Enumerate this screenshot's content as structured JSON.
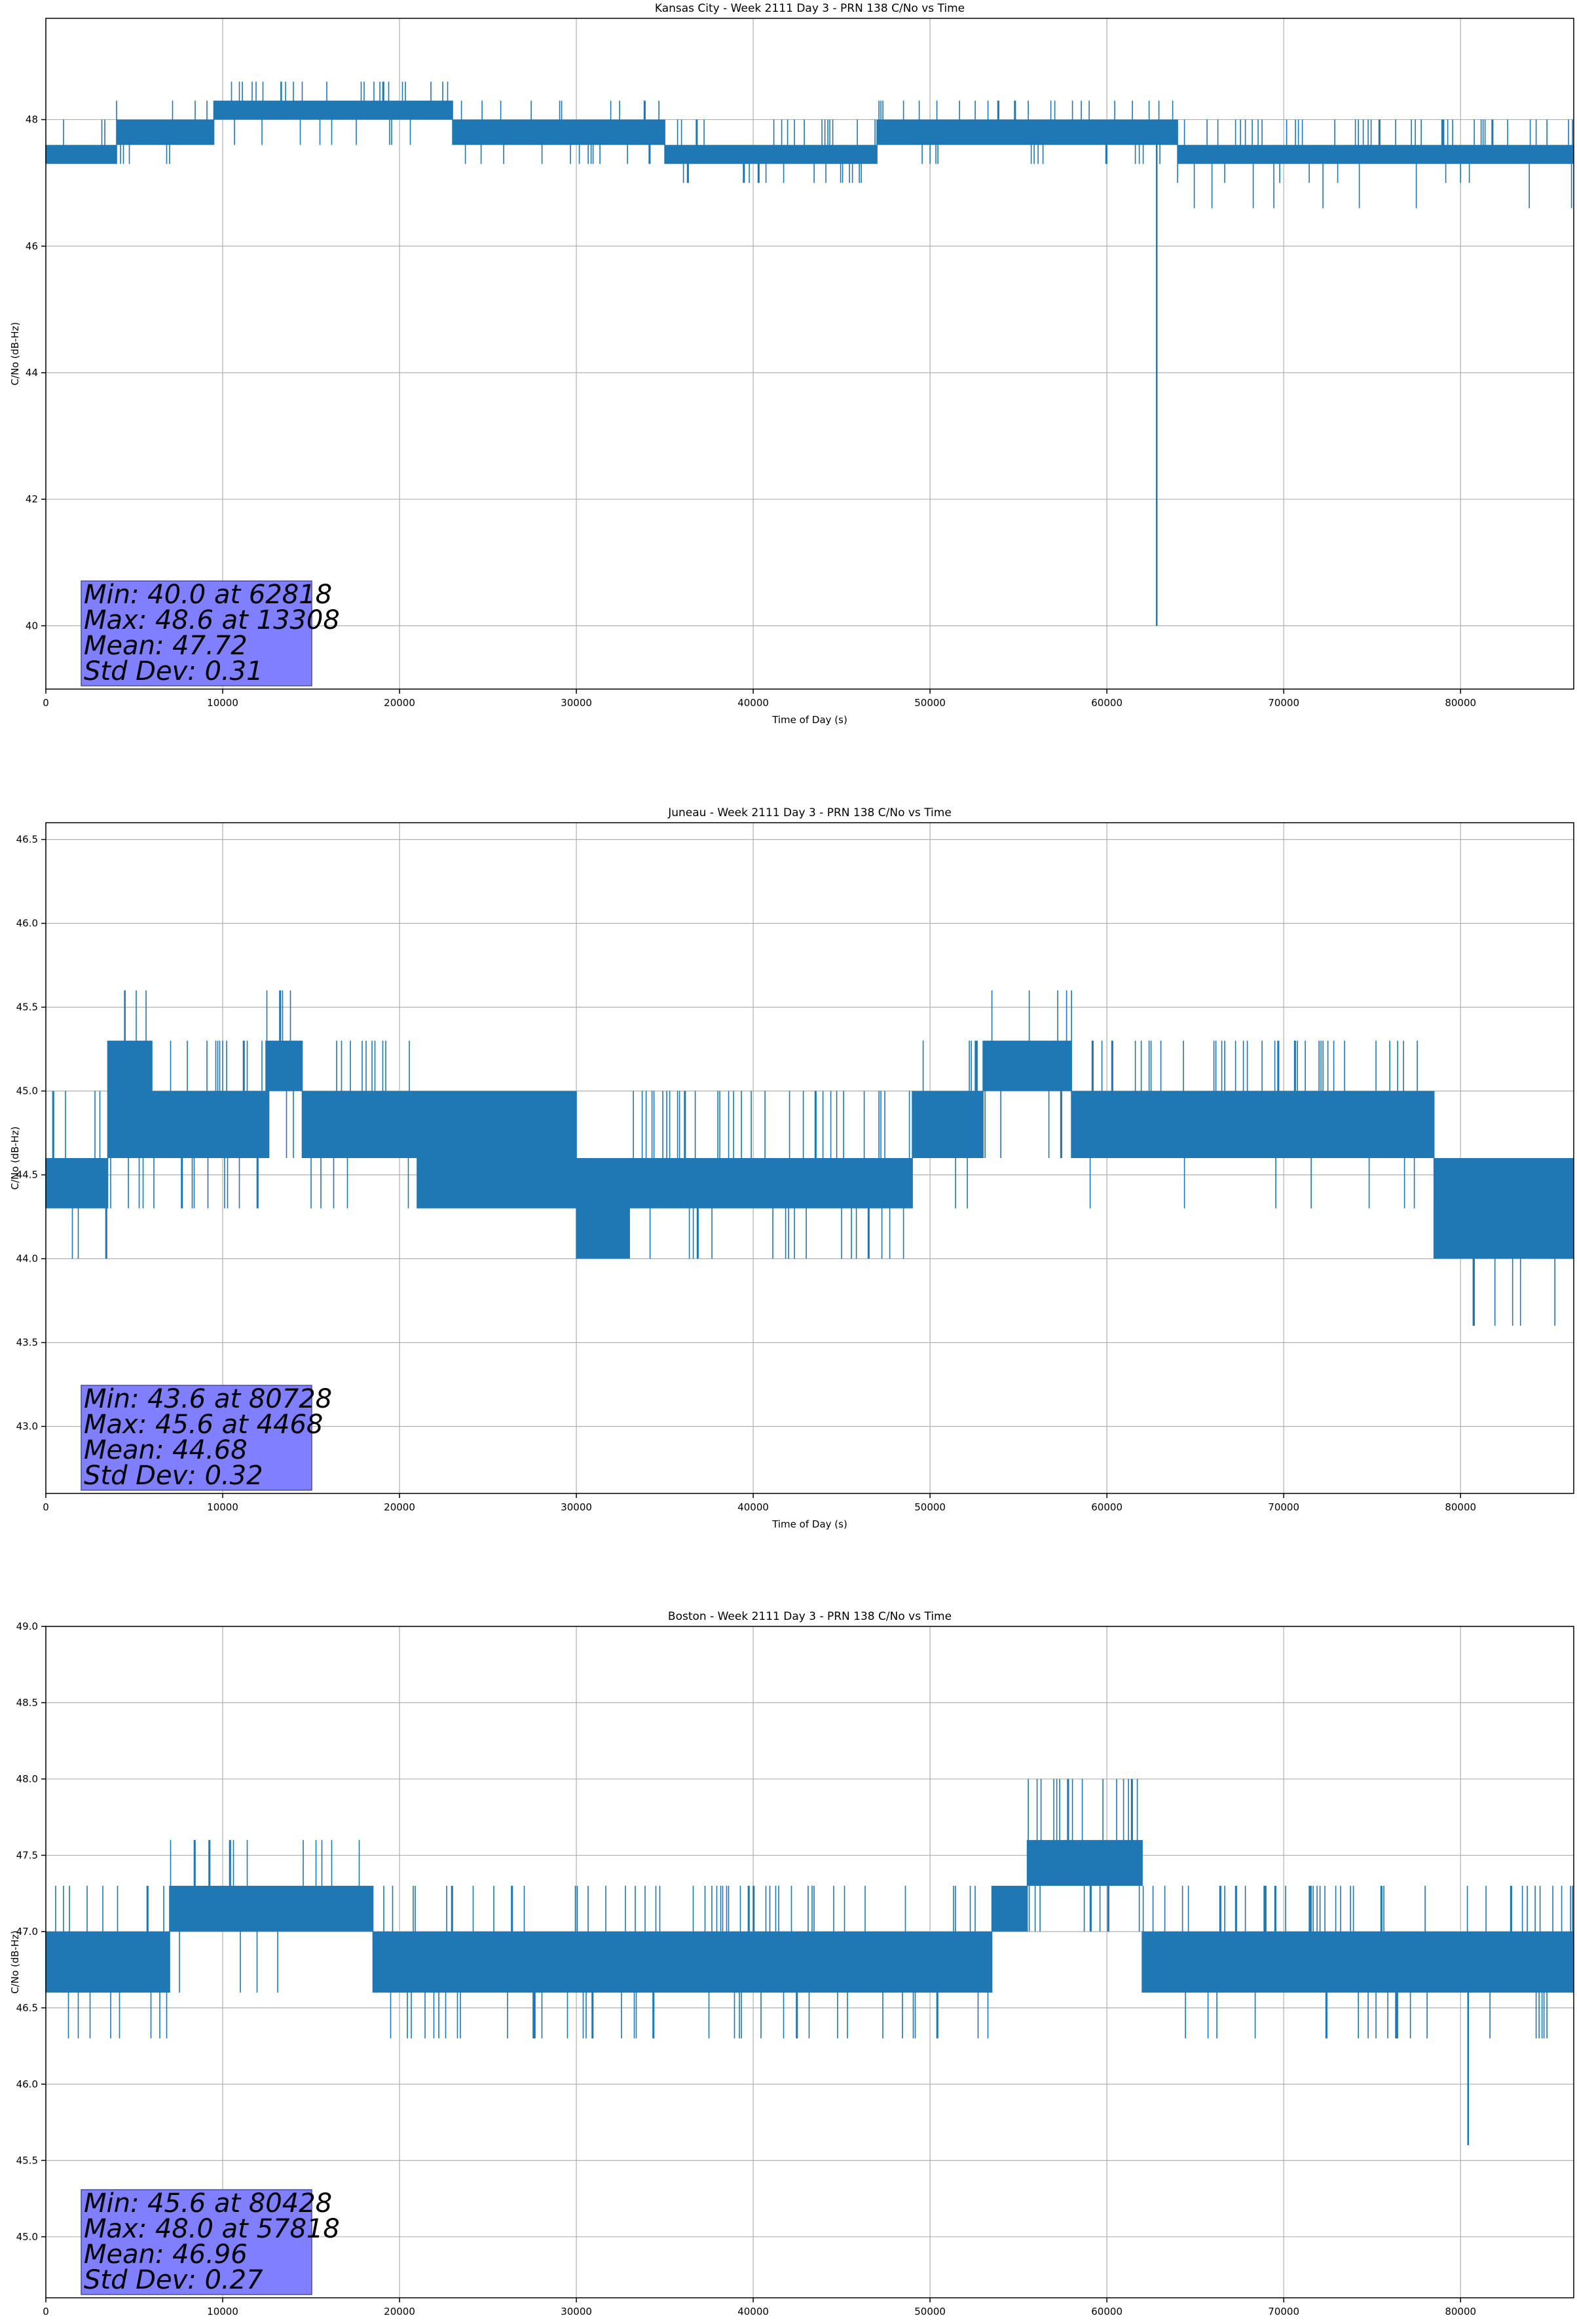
{
  "figure": {
    "colors": {
      "series": "#1f77b4",
      "grid": "#b0b0b0",
      "stats_box": "#7f7fff",
      "axes": "#000000"
    }
  },
  "chart_data": [
    {
      "type": "line",
      "title": "Kansas City - Week 2111 Day 3 - PRN 138 C/No vs Time",
      "xlabel": "Time of Day (s)",
      "ylabel": "C/No (dB-Hz)",
      "xlim": [
        0,
        86400
      ],
      "ylim": [
        39.0,
        49.6
      ],
      "xticks": [
        0,
        10000,
        20000,
        30000,
        40000,
        50000,
        60000,
        70000,
        80000
      ],
      "yticks": [
        40,
        42,
        44,
        46,
        48
      ],
      "ytick_decimals": 0,
      "grid": true,
      "series": [
        {
          "values_description": "quantized C/No samples",
          "segments": [
            {
              "x0": 0,
              "x1": 4000,
              "lo": 47.3,
              "hi": 47.6,
              "spikes_up": [
                48.0
              ],
              "spikes_down": []
            },
            {
              "x0": 4000,
              "x1": 7000,
              "lo": 47.6,
              "hi": 48.0,
              "spikes_up": [
                48.3
              ],
              "spikes_down": [
                47.3
              ]
            },
            {
              "x0": 7000,
              "x1": 9500,
              "lo": 47.6,
              "hi": 48.0,
              "spikes_up": [
                48.3
              ],
              "spikes_down": []
            },
            {
              "x0": 9500,
              "x1": 23000,
              "lo": 48.0,
              "hi": 48.3,
              "spikes_up": [
                48.6
              ],
              "spikes_down": [
                47.6
              ]
            },
            {
              "x0": 23000,
              "x1": 35000,
              "lo": 47.6,
              "hi": 48.0,
              "spikes_up": [
                48.3
              ],
              "spikes_down": [
                47.3
              ]
            },
            {
              "x0": 35000,
              "x1": 47000,
              "lo": 47.3,
              "hi": 47.6,
              "spikes_up": [
                48.0
              ],
              "spikes_down": [
                47.0
              ]
            },
            {
              "x0": 47000,
              "x1": 53000,
              "lo": 47.6,
              "hi": 48.0,
              "spikes_up": [
                48.3
              ],
              "spikes_down": [
                47.3
              ]
            },
            {
              "x0": 53000,
              "x1": 64000,
              "lo": 47.6,
              "hi": 48.0,
              "spikes_up": [
                48.3
              ],
              "spikes_down": [
                47.3
              ]
            },
            {
              "x0": 64000,
              "x1": 86400,
              "lo": 47.3,
              "hi": 47.6,
              "spikes_up": [
                48.0
              ],
              "spikes_down": [
                47.0,
                46.6
              ]
            }
          ],
          "min": {
            "x": 62818,
            "y": 40.0
          },
          "max": {
            "x": 13308,
            "y": 48.6
          }
        }
      ],
      "stats": [
        "Min: 40.0 at 62818",
        "Max: 48.6 at 13308",
        "Mean: 47.72",
        "Std Dev: 0.31"
      ]
    },
    {
      "type": "line",
      "title": "Juneau - Week 2111 Day 3 - PRN 138 C/No vs Time",
      "xlabel": "Time of Day (s)",
      "ylabel": "C/No (dB-Hz)",
      "xlim": [
        0,
        86400
      ],
      "ylim": [
        42.6,
        46.6
      ],
      "xticks": [
        0,
        10000,
        20000,
        30000,
        40000,
        50000,
        60000,
        70000,
        80000
      ],
      "yticks": [
        43.0,
        43.5,
        44.0,
        44.5,
        45.0,
        45.5,
        46.0,
        46.5
      ],
      "ytick_decimals": 1,
      "grid": true,
      "series": [
        {
          "values_description": "quantized C/No samples",
          "segments": [
            {
              "x0": 0,
              "x1": 3500,
              "lo": 44.3,
              "hi": 44.6,
              "spikes_up": [
                45.0
              ],
              "spikes_down": [
                44.0
              ]
            },
            {
              "x0": 3500,
              "x1": 6000,
              "lo": 44.6,
              "hi": 45.3,
              "spikes_up": [
                45.6
              ],
              "spikes_down": [
                44.3
              ]
            },
            {
              "x0": 6000,
              "x1": 12500,
              "lo": 44.6,
              "hi": 45.0,
              "spikes_up": [
                45.3
              ],
              "spikes_down": [
                44.3
              ]
            },
            {
              "x0": 12500,
              "x1": 14500,
              "lo": 45.0,
              "hi": 45.3,
              "spikes_up": [
                45.6
              ],
              "spikes_down": [
                44.6
              ]
            },
            {
              "x0": 14500,
              "x1": 21000,
              "lo": 44.6,
              "hi": 45.0,
              "spikes_up": [
                45.3
              ],
              "spikes_down": [
                44.3
              ]
            },
            {
              "x0": 21000,
              "x1": 30000,
              "lo": 44.3,
              "hi": 45.0,
              "spikes_up": [],
              "spikes_down": []
            },
            {
              "x0": 30000,
              "x1": 33000,
              "lo": 44.0,
              "hi": 44.6,
              "spikes_up": [],
              "spikes_down": []
            },
            {
              "x0": 33000,
              "x1": 49000,
              "lo": 44.3,
              "hi": 44.6,
              "spikes_up": [
                45.0
              ],
              "spikes_down": [
                44.0
              ]
            },
            {
              "x0": 49000,
              "x1": 53000,
              "lo": 44.6,
              "hi": 45.0,
              "spikes_up": [
                45.3
              ],
              "spikes_down": [
                44.3
              ]
            },
            {
              "x0": 53000,
              "x1": 58000,
              "lo": 45.0,
              "hi": 45.3,
              "spikes_up": [
                45.6
              ],
              "spikes_down": [
                44.6
              ]
            },
            {
              "x0": 58000,
              "x1": 78500,
              "lo": 44.6,
              "hi": 45.0,
              "spikes_up": [
                45.3
              ],
              "spikes_down": [
                44.3
              ]
            },
            {
              "x0": 78500,
              "x1": 86400,
              "lo": 44.0,
              "hi": 44.6,
              "spikes_up": [],
              "spikes_down": [
                43.6
              ]
            }
          ],
          "min": {
            "x": 80728,
            "y": 43.6
          },
          "max": {
            "x": 4468,
            "y": 45.6
          }
        }
      ],
      "stats": [
        "Min: 43.6 at 80728",
        "Max: 45.6 at 4468",
        "Mean: 44.68",
        "Std Dev: 0.32"
      ]
    },
    {
      "type": "line",
      "title": "Boston - Week 2111 Day 3 - PRN 138 C/No vs Time",
      "xlabel": "Time of Day (s)",
      "ylabel": "C/No (dB-Hz)",
      "xlim": [
        0,
        86400
      ],
      "ylim": [
        44.6,
        49.0
      ],
      "xticks": [
        0,
        10000,
        20000,
        30000,
        40000,
        50000,
        60000,
        70000,
        80000
      ],
      "yticks": [
        45.0,
        45.5,
        46.0,
        46.5,
        47.0,
        47.5,
        48.0,
        48.5,
        49.0
      ],
      "ytick_decimals": 1,
      "grid": true,
      "series": [
        {
          "values_description": "quantized C/No samples",
          "segments": [
            {
              "x0": 0,
              "x1": 7000,
              "lo": 46.6,
              "hi": 47.0,
              "spikes_up": [
                47.3
              ],
              "spikes_down": [
                46.3
              ]
            },
            {
              "x0": 7000,
              "x1": 18500,
              "lo": 47.0,
              "hi": 47.3,
              "spikes_up": [
                47.6
              ],
              "spikes_down": [
                46.6
              ]
            },
            {
              "x0": 18500,
              "x1": 53500,
              "lo": 46.6,
              "hi": 47.0,
              "spikes_up": [
                47.3
              ],
              "spikes_down": [
                46.3
              ]
            },
            {
              "x0": 53500,
              "x1": 55500,
              "lo": 47.0,
              "hi": 47.3,
              "spikes_up": [
                47.6
              ],
              "spikes_down": []
            },
            {
              "x0": 55500,
              "x1": 62000,
              "lo": 47.3,
              "hi": 47.6,
              "spikes_up": [
                48.0
              ],
              "spikes_down": [
                47.0
              ]
            },
            {
              "x0": 62000,
              "x1": 86400,
              "lo": 46.6,
              "hi": 47.0,
              "spikes_up": [
                47.3
              ],
              "spikes_down": [
                46.3
              ]
            }
          ],
          "min": {
            "x": 80428,
            "y": 45.6
          },
          "max": {
            "x": 57818,
            "y": 48.0
          }
        }
      ],
      "stats": [
        "Min: 45.6 at 80428",
        "Max: 48.0 at 57818",
        "Mean: 46.96",
        "Std Dev: 0.27"
      ]
    }
  ]
}
